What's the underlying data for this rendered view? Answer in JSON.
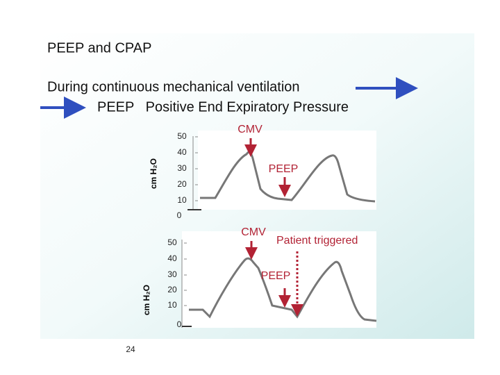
{
  "header": {
    "title": "PEEP and CPAP",
    "line1": "During continuous mechanical ventilation",
    "line2": "PEEP   Positive End Expiratory Pressure"
  },
  "charts": [
    {
      "ylabel": "cm H₂O",
      "yticks": [
        "50",
        "40",
        "30",
        "20",
        "10",
        "0"
      ],
      "annotations": [
        "CMV",
        "PEEP"
      ]
    },
    {
      "ylabel": "cm H₂O",
      "yticks": [
        "50",
        "40",
        "30",
        "20",
        "10",
        "0"
      ],
      "annotations": [
        "CMV",
        "Patient triggered",
        "PEEP"
      ]
    }
  ],
  "footer": {
    "page": "24"
  }
}
